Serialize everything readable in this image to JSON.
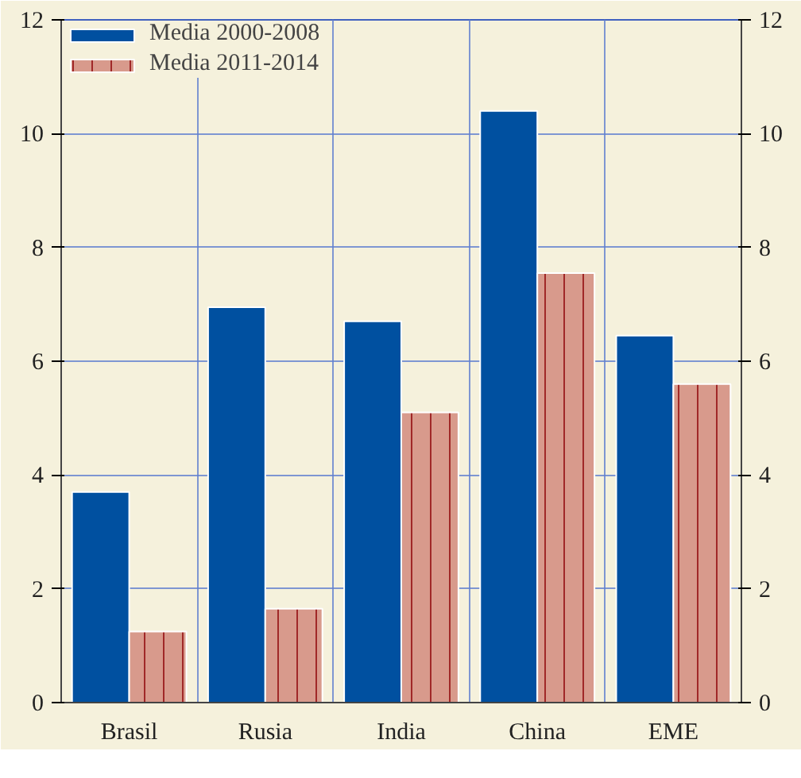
{
  "chart_data": {
    "type": "bar",
    "categories": [
      "Brasil",
      "Rusia",
      "India",
      "China",
      "EME"
    ],
    "series": [
      {
        "name": "Media 2000-2008",
        "color": "#0050a0",
        "values": [
          3.7,
          6.95,
          6.7,
          10.4,
          6.45
        ]
      },
      {
        "name": "Media 2011-2014",
        "color": "#d89a8c",
        "values": [
          1.25,
          1.65,
          5.1,
          7.55,
          5.6
        ]
      }
    ],
    "ylim": [
      0,
      12
    ],
    "yticks": [
      0,
      2,
      4,
      6,
      8,
      10,
      12
    ],
    "y2lim": [
      0,
      12
    ],
    "y2ticks": [
      0,
      2,
      4,
      6,
      8,
      10,
      12
    ],
    "grid": true,
    "legend": "top left"
  }
}
